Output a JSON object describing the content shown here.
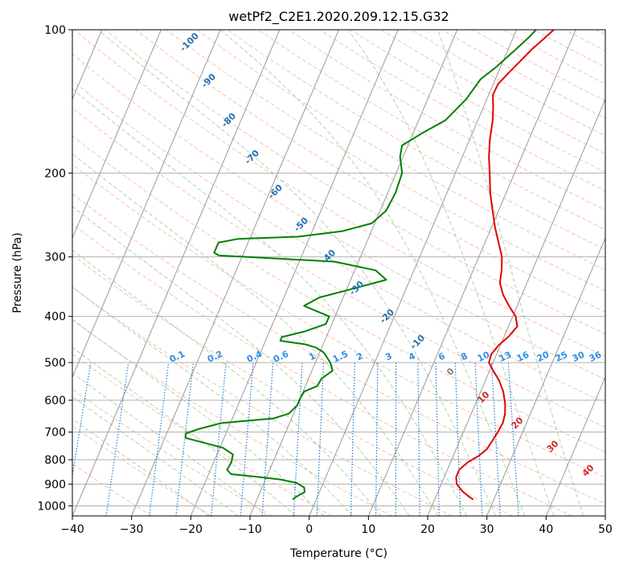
{
  "chart_data": {
    "type": "line",
    "title": "wetPf2_C2E1.2020.209.12.15.G32",
    "xlabel": "Temperature (°C)",
    "ylabel": "Pressure (hPa)",
    "xlim": [
      -40,
      50
    ],
    "ylim": [
      1050,
      100
    ],
    "y_scale": "log",
    "x_ticks": [
      -40,
      -30,
      -20,
      -10,
      0,
      10,
      20,
      30,
      40,
      50
    ],
    "x_tick_labels": [
      "−40",
      "−30",
      "−20",
      "−10",
      "0",
      "10",
      "20",
      "30",
      "40",
      "50"
    ],
    "y_ticks": [
      1000,
      900,
      800,
      700,
      600,
      500,
      400,
      300,
      200,
      100
    ],
    "y_tick_labels": [
      "1000",
      "900",
      "800",
      "700",
      "600",
      "500",
      "400",
      "300",
      "200",
      "100"
    ],
    "grid": true,
    "series": [
      {
        "color": "#e00000",
        "points": [
          [
            26.5,
            970
          ],
          [
            25.5,
            955
          ],
          [
            24.0,
            930
          ],
          [
            22.6,
            900
          ],
          [
            22.0,
            870
          ],
          [
            22.0,
            840
          ],
          [
            22.9,
            810
          ],
          [
            24.3,
            785
          ],
          [
            25.2,
            760
          ],
          [
            25.5,
            730
          ],
          [
            25.8,
            700
          ],
          [
            26.0,
            670
          ],
          [
            25.7,
            640
          ],
          [
            25.0,
            610
          ],
          [
            23.8,
            575
          ],
          [
            22.3,
            545
          ],
          [
            20.6,
            520
          ],
          [
            19.3,
            500
          ],
          [
            19.1,
            480
          ],
          [
            19.7,
            460
          ],
          [
            20.8,
            440
          ],
          [
            21.5,
            420
          ],
          [
            20.5,
            400
          ],
          [
            18.6,
            380
          ],
          [
            16.8,
            360
          ],
          [
            15.4,
            340
          ],
          [
            14.8,
            320
          ],
          [
            13.9,
            300
          ],
          [
            12.3,
            280
          ],
          [
            10.6,
            260
          ],
          [
            9.0,
            240
          ],
          [
            7.3,
            220
          ],
          [
            5.8,
            200
          ],
          [
            4.5,
            185
          ],
          [
            3.4,
            170
          ],
          [
            2.5,
            155
          ],
          [
            1.6,
            145
          ],
          [
            0.7,
            137
          ],
          [
            0.8,
            130
          ],
          [
            1.8,
            123
          ],
          [
            2.8,
            117
          ],
          [
            4.0,
            110
          ],
          [
            5.6,
            103
          ],
          [
            6.3,
            100
          ]
        ]
      },
      {
        "color": "#008000",
        "points": [
          [
            -4.0,
            970
          ],
          [
            -3.5,
            955
          ],
          [
            -2.5,
            935
          ],
          [
            -2.9,
            915
          ],
          [
            -4.5,
            895
          ],
          [
            -7.5,
            880
          ],
          [
            -12.0,
            868
          ],
          [
            -16.2,
            858
          ],
          [
            -17.2,
            840
          ],
          [
            -17.0,
            810
          ],
          [
            -17.3,
            780
          ],
          [
            -19.5,
            755
          ],
          [
            -26.5,
            720
          ],
          [
            -26.8,
            705
          ],
          [
            -25.0,
            690
          ],
          [
            -21.5,
            670
          ],
          [
            -13.0,
            655
          ],
          [
            -10.8,
            640
          ],
          [
            -10.0,
            615
          ],
          [
            -10.0,
            595
          ],
          [
            -9.8,
            575
          ],
          [
            -8.0,
            560
          ],
          [
            -7.8,
            540
          ],
          [
            -6.5,
            520
          ],
          [
            -7.5,
            500
          ],
          [
            -9.0,
            480
          ],
          [
            -9.5,
            475
          ],
          [
            -11.0,
            465
          ],
          [
            -13.0,
            458
          ],
          [
            -17.5,
            450
          ],
          [
            -17.5,
            442
          ],
          [
            -14.0,
            430
          ],
          [
            -11.0,
            415
          ],
          [
            -11.0,
            400
          ],
          [
            -13.5,
            390
          ],
          [
            -16.0,
            380
          ],
          [
            -14.0,
            365
          ],
          [
            -9.0,
            350
          ],
          [
            -4.0,
            335
          ],
          [
            -6.5,
            320
          ],
          [
            -14.0,
            307
          ],
          [
            -29.0,
            300
          ],
          [
            -34.0,
            298
          ],
          [
            -35.0,
            294
          ],
          [
            -35.0,
            280
          ],
          [
            -32.0,
            275
          ],
          [
            -22.0,
            272
          ],
          [
            -15.0,
            265
          ],
          [
            -10.5,
            255
          ],
          [
            -9.0,
            240
          ],
          [
            -8.7,
            220
          ],
          [
            -9.0,
            200
          ],
          [
            -10.5,
            185
          ],
          [
            -11.0,
            175
          ],
          [
            -8.5,
            165
          ],
          [
            -5.5,
            155
          ],
          [
            -3.5,
            140
          ],
          [
            -2.5,
            127
          ],
          [
            -0.8,
            120
          ],
          [
            1.3,
            110
          ],
          [
            2.8,
            103
          ],
          [
            3.3,
            100
          ]
        ]
      }
    ],
    "dry_adiabat_labels": [
      "-100",
      "-90",
      "-80",
      "-70",
      "-60",
      "-50",
      "-40",
      "-30",
      "-20",
      "-10",
      "0",
      "10",
      "20",
      "30",
      "40"
    ],
    "mixing_ratio_labels": [
      "0.1",
      "0.2",
      "0.4",
      "0.6",
      "1",
      "1.5",
      "2",
      "3",
      "4",
      "6",
      "8",
      "10",
      "13",
      "16",
      "20",
      "25",
      "30",
      "36"
    ],
    "colors": {
      "dry_adiabats": "#fbbfae",
      "moist_adiabats": "#a9d6a9",
      "mixing_ratio": "#1e7fd8",
      "isotherms": "#9a9a9a",
      "grid": "#b0b0b0",
      "dry_label_blue": "#2870b4",
      "dry_label_gray": "#808080",
      "dry_label_red": "#d62728",
      "mixing_ratio_label": "#2f8ee8"
    }
  }
}
